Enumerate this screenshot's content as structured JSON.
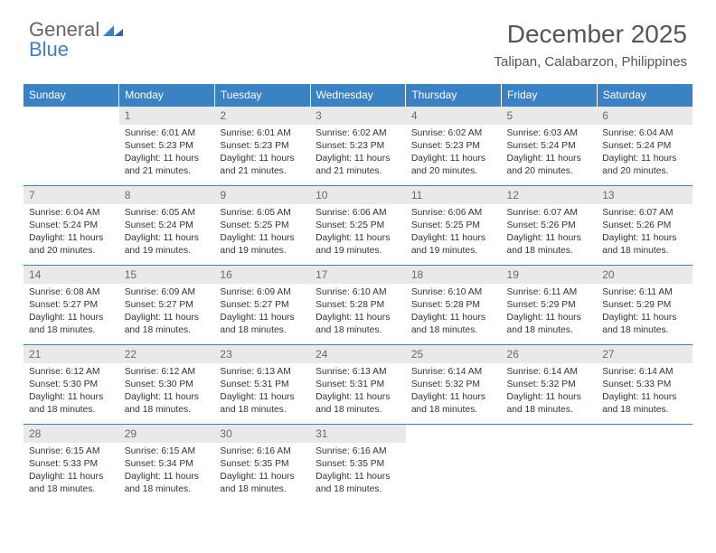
{
  "logo": {
    "text1": "General",
    "text2": "Blue"
  },
  "header": {
    "month": "December 2025",
    "location": "Talipan, Calabarzon, Philippines"
  },
  "colors": {
    "accent": "#3b82c4",
    "header_bg": "#3b82c4",
    "daynum_bg": "#e9e9e9",
    "text": "#333333"
  },
  "columns": [
    "Sunday",
    "Monday",
    "Tuesday",
    "Wednesday",
    "Thursday",
    "Friday",
    "Saturday"
  ],
  "weeks": [
    [
      {
        "n": "",
        "sr": "",
        "ss": "",
        "dl": ""
      },
      {
        "n": "1",
        "sr": "Sunrise: 6:01 AM",
        "ss": "Sunset: 5:23 PM",
        "dl": "Daylight: 11 hours and 21 minutes."
      },
      {
        "n": "2",
        "sr": "Sunrise: 6:01 AM",
        "ss": "Sunset: 5:23 PM",
        "dl": "Daylight: 11 hours and 21 minutes."
      },
      {
        "n": "3",
        "sr": "Sunrise: 6:02 AM",
        "ss": "Sunset: 5:23 PM",
        "dl": "Daylight: 11 hours and 21 minutes."
      },
      {
        "n": "4",
        "sr": "Sunrise: 6:02 AM",
        "ss": "Sunset: 5:23 PM",
        "dl": "Daylight: 11 hours and 20 minutes."
      },
      {
        "n": "5",
        "sr": "Sunrise: 6:03 AM",
        "ss": "Sunset: 5:24 PM",
        "dl": "Daylight: 11 hours and 20 minutes."
      },
      {
        "n": "6",
        "sr": "Sunrise: 6:04 AM",
        "ss": "Sunset: 5:24 PM",
        "dl": "Daylight: 11 hours and 20 minutes."
      }
    ],
    [
      {
        "n": "7",
        "sr": "Sunrise: 6:04 AM",
        "ss": "Sunset: 5:24 PM",
        "dl": "Daylight: 11 hours and 20 minutes."
      },
      {
        "n": "8",
        "sr": "Sunrise: 6:05 AM",
        "ss": "Sunset: 5:24 PM",
        "dl": "Daylight: 11 hours and 19 minutes."
      },
      {
        "n": "9",
        "sr": "Sunrise: 6:05 AM",
        "ss": "Sunset: 5:25 PM",
        "dl": "Daylight: 11 hours and 19 minutes."
      },
      {
        "n": "10",
        "sr": "Sunrise: 6:06 AM",
        "ss": "Sunset: 5:25 PM",
        "dl": "Daylight: 11 hours and 19 minutes."
      },
      {
        "n": "11",
        "sr": "Sunrise: 6:06 AM",
        "ss": "Sunset: 5:25 PM",
        "dl": "Daylight: 11 hours and 19 minutes."
      },
      {
        "n": "12",
        "sr": "Sunrise: 6:07 AM",
        "ss": "Sunset: 5:26 PM",
        "dl": "Daylight: 11 hours and 18 minutes."
      },
      {
        "n": "13",
        "sr": "Sunrise: 6:07 AM",
        "ss": "Sunset: 5:26 PM",
        "dl": "Daylight: 11 hours and 18 minutes."
      }
    ],
    [
      {
        "n": "14",
        "sr": "Sunrise: 6:08 AM",
        "ss": "Sunset: 5:27 PM",
        "dl": "Daylight: 11 hours and 18 minutes."
      },
      {
        "n": "15",
        "sr": "Sunrise: 6:09 AM",
        "ss": "Sunset: 5:27 PM",
        "dl": "Daylight: 11 hours and 18 minutes."
      },
      {
        "n": "16",
        "sr": "Sunrise: 6:09 AM",
        "ss": "Sunset: 5:27 PM",
        "dl": "Daylight: 11 hours and 18 minutes."
      },
      {
        "n": "17",
        "sr": "Sunrise: 6:10 AM",
        "ss": "Sunset: 5:28 PM",
        "dl": "Daylight: 11 hours and 18 minutes."
      },
      {
        "n": "18",
        "sr": "Sunrise: 6:10 AM",
        "ss": "Sunset: 5:28 PM",
        "dl": "Daylight: 11 hours and 18 minutes."
      },
      {
        "n": "19",
        "sr": "Sunrise: 6:11 AM",
        "ss": "Sunset: 5:29 PM",
        "dl": "Daylight: 11 hours and 18 minutes."
      },
      {
        "n": "20",
        "sr": "Sunrise: 6:11 AM",
        "ss": "Sunset: 5:29 PM",
        "dl": "Daylight: 11 hours and 18 minutes."
      }
    ],
    [
      {
        "n": "21",
        "sr": "Sunrise: 6:12 AM",
        "ss": "Sunset: 5:30 PM",
        "dl": "Daylight: 11 hours and 18 minutes."
      },
      {
        "n": "22",
        "sr": "Sunrise: 6:12 AM",
        "ss": "Sunset: 5:30 PM",
        "dl": "Daylight: 11 hours and 18 minutes."
      },
      {
        "n": "23",
        "sr": "Sunrise: 6:13 AM",
        "ss": "Sunset: 5:31 PM",
        "dl": "Daylight: 11 hours and 18 minutes."
      },
      {
        "n": "24",
        "sr": "Sunrise: 6:13 AM",
        "ss": "Sunset: 5:31 PM",
        "dl": "Daylight: 11 hours and 18 minutes."
      },
      {
        "n": "25",
        "sr": "Sunrise: 6:14 AM",
        "ss": "Sunset: 5:32 PM",
        "dl": "Daylight: 11 hours and 18 minutes."
      },
      {
        "n": "26",
        "sr": "Sunrise: 6:14 AM",
        "ss": "Sunset: 5:32 PM",
        "dl": "Daylight: 11 hours and 18 minutes."
      },
      {
        "n": "27",
        "sr": "Sunrise: 6:14 AM",
        "ss": "Sunset: 5:33 PM",
        "dl": "Daylight: 11 hours and 18 minutes."
      }
    ],
    [
      {
        "n": "28",
        "sr": "Sunrise: 6:15 AM",
        "ss": "Sunset: 5:33 PM",
        "dl": "Daylight: 11 hours and 18 minutes."
      },
      {
        "n": "29",
        "sr": "Sunrise: 6:15 AM",
        "ss": "Sunset: 5:34 PM",
        "dl": "Daylight: 11 hours and 18 minutes."
      },
      {
        "n": "30",
        "sr": "Sunrise: 6:16 AM",
        "ss": "Sunset: 5:35 PM",
        "dl": "Daylight: 11 hours and 18 minutes."
      },
      {
        "n": "31",
        "sr": "Sunrise: 6:16 AM",
        "ss": "Sunset: 5:35 PM",
        "dl": "Daylight: 11 hours and 18 minutes."
      },
      {
        "n": "",
        "sr": "",
        "ss": "",
        "dl": ""
      },
      {
        "n": "",
        "sr": "",
        "ss": "",
        "dl": ""
      },
      {
        "n": "",
        "sr": "",
        "ss": "",
        "dl": ""
      }
    ]
  ]
}
